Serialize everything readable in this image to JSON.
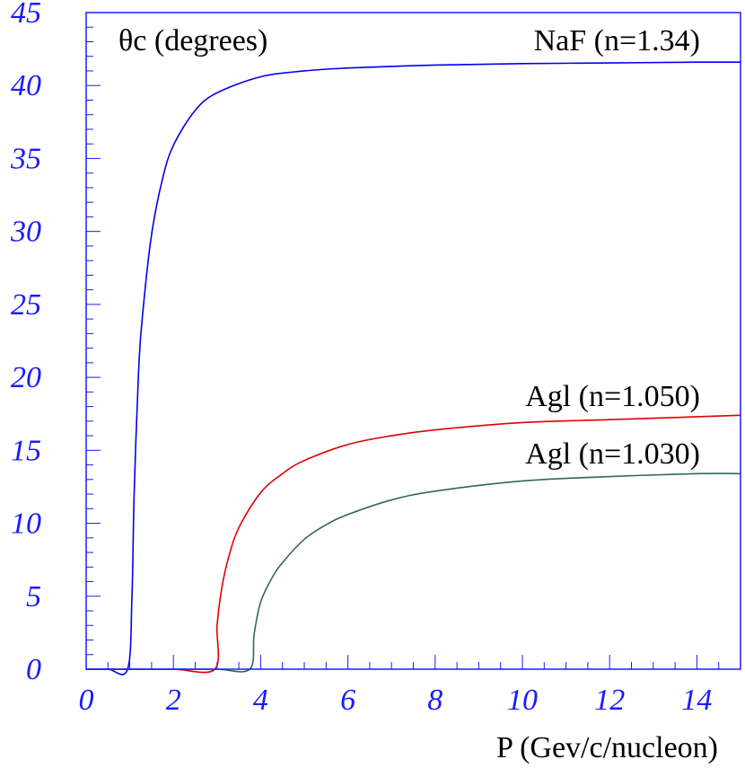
{
  "chart_data": {
    "type": "line",
    "title": "",
    "ylabel": "θc (degrees)",
    "xlabel": "P (Gev/c/nucleon)",
    "xlim": [
      0,
      15
    ],
    "ylim": [
      0,
      45
    ],
    "x_ticks": [
      0,
      2,
      4,
      6,
      8,
      10,
      12,
      14
    ],
    "y_ticks": [
      0,
      5,
      10,
      15,
      20,
      25,
      30,
      35,
      40,
      45
    ],
    "x_tick_labels": [
      "0",
      "2",
      "4",
      "6",
      "8",
      "10",
      "12",
      "14"
    ],
    "y_tick_labels": [
      "0",
      "5",
      "10",
      "15",
      "20",
      "25",
      "30",
      "35",
      "40",
      "45"
    ],
    "grid": false,
    "legend": "none",
    "series": [
      {
        "name": "NaF (n=1.34)",
        "color": "#0000ee",
        "x": [
          0.0,
          0.5,
          0.95,
          1.05,
          1.1,
          1.2,
          1.3,
          1.5,
          1.75,
          2.0,
          2.5,
          3.0,
          4.0,
          5.0,
          6.0,
          8.0,
          10.0,
          12.0,
          14.0,
          15.0
        ],
        "y": [
          0.0,
          0.0,
          0.0,
          5.0,
          12.0,
          20.3,
          24.5,
          29.8,
          33.6,
          35.9,
          38.3,
          39.5,
          40.6,
          41.0,
          41.2,
          41.4,
          41.5,
          41.55,
          41.6,
          41.6
        ]
      },
      {
        "name": "Agl (n=1.050)",
        "color": "#e00000",
        "x": [
          0.0,
          1.0,
          2.0,
          2.95,
          3.0,
          3.1,
          3.25,
          3.5,
          4.0,
          4.5,
          5.0,
          6.0,
          7.0,
          8.0,
          10.0,
          12.0,
          14.0,
          15.0
        ],
        "y": [
          0.0,
          0.0,
          0.0,
          0.0,
          3.0,
          5.4,
          7.5,
          9.7,
          12.1,
          13.4,
          14.3,
          15.4,
          16.0,
          16.4,
          16.9,
          17.1,
          17.3,
          17.4
        ]
      },
      {
        "name": "Agl (n=1.030)",
        "color": "#2e6b4f",
        "x": [
          0.0,
          2.0,
          3.0,
          3.75,
          3.85,
          4.0,
          4.25,
          4.5,
          5.0,
          5.5,
          6.0,
          7.0,
          8.0,
          10.0,
          12.0,
          14.0,
          15.0
        ],
        "y": [
          0.0,
          0.0,
          0.0,
          0.0,
          2.4,
          4.6,
          6.2,
          7.3,
          8.9,
          9.9,
          10.6,
          11.6,
          12.2,
          12.9,
          13.2,
          13.4,
          13.4
        ]
      }
    ],
    "annotations": [
      {
        "name": "ylabel",
        "text": "θc (degrees)"
      },
      {
        "name": "naf-label",
        "text": "NaF (n=1.34)"
      },
      {
        "name": "agl-1050-label",
        "text": "Agl (n=1.050)"
      },
      {
        "name": "agl-1030-label",
        "text": "Agl (n=1.030)"
      }
    ]
  }
}
